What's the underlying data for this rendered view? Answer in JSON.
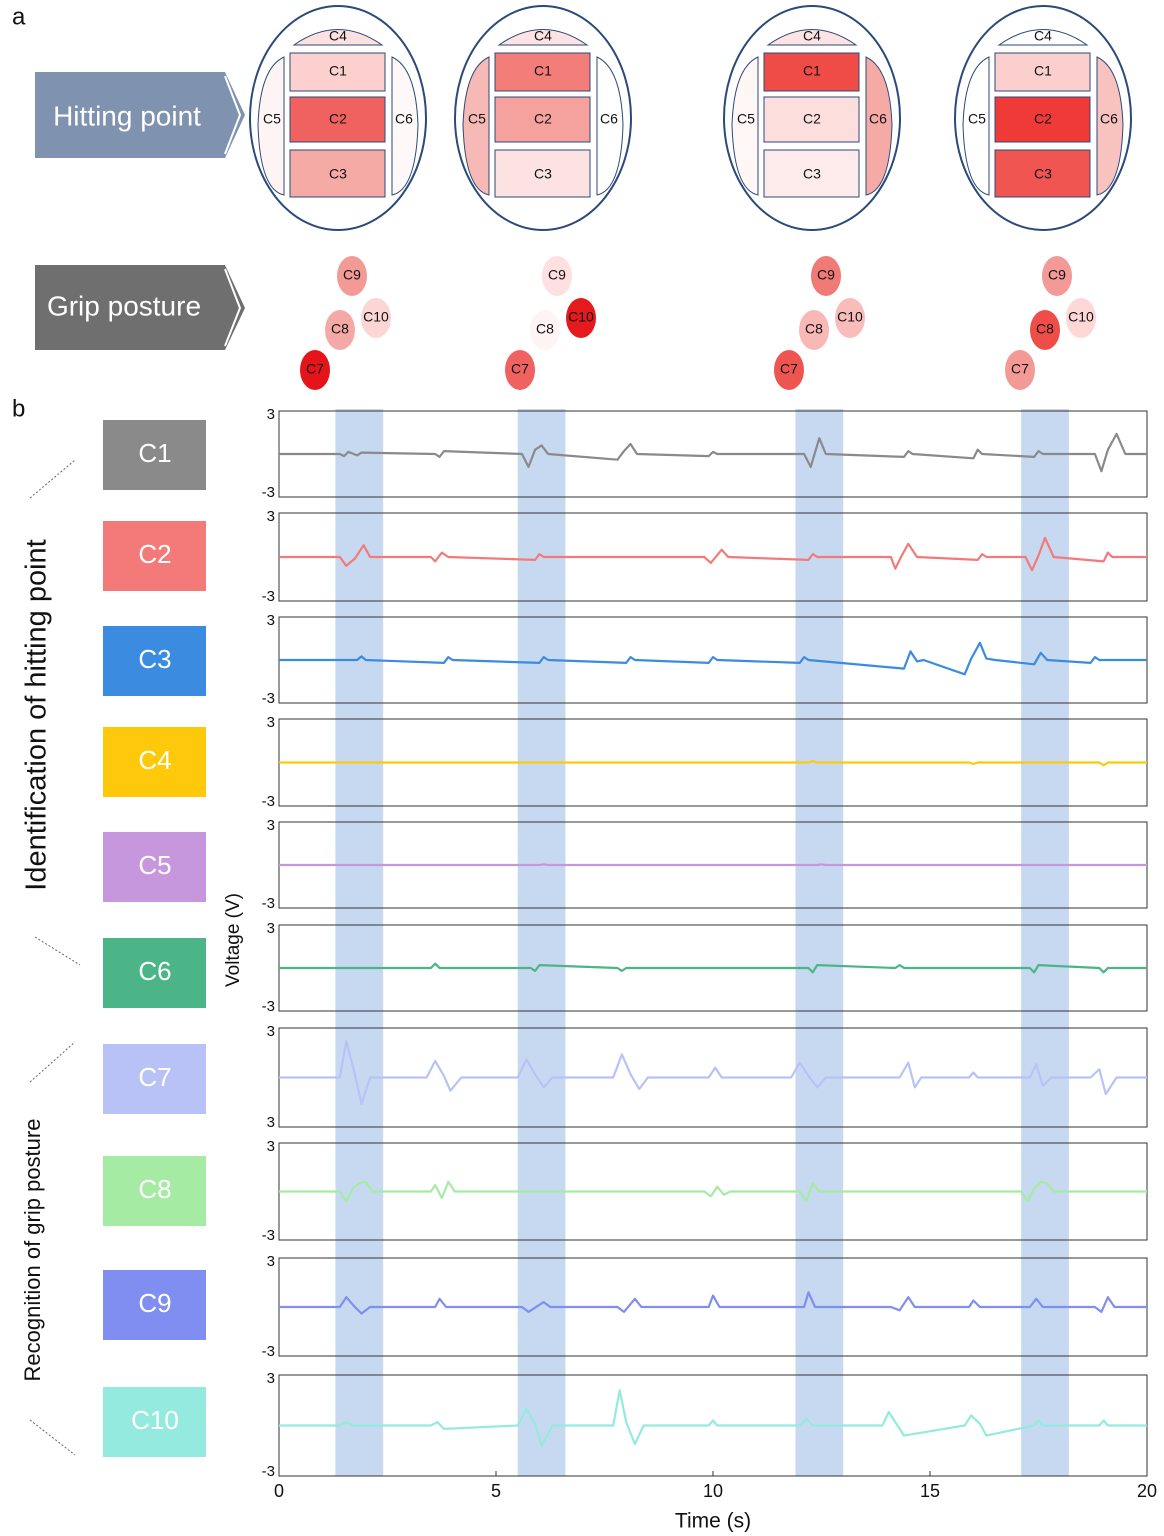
{
  "panel_a": {
    "label": "a",
    "hitting_label": "Hitting point",
    "grip_label": "Grip posture",
    "rackets": [
      {
        "cells": [
          {
            "label": "C4",
            "color": "#fde0e0"
          },
          {
            "label": "C1",
            "color": "#fbd0cf"
          },
          {
            "label": "C2",
            "color": "#f0625f"
          },
          {
            "label": "C3",
            "color": "#f6aaa6"
          },
          {
            "label": "C5",
            "color": "#fff4f4"
          },
          {
            "label": "C6",
            "color": "#fff8f8"
          }
        ]
      },
      {
        "cells": [
          {
            "label": "C4",
            "color": "#fde3e3"
          },
          {
            "label": "C1",
            "color": "#f27d79"
          },
          {
            "label": "C2",
            "color": "#f5a29e"
          },
          {
            "label": "C3",
            "color": "#fce3e2"
          },
          {
            "label": "C5",
            "color": "#f6b9b6"
          },
          {
            "label": "C6",
            "color": "#ffffff"
          }
        ]
      },
      {
        "cells": [
          {
            "label": "C4",
            "color": "#fde3e3"
          },
          {
            "label": "C1",
            "color": "#ef4c48"
          },
          {
            "label": "C2",
            "color": "#fcdedd"
          },
          {
            "label": "C3",
            "color": "#fdebec"
          },
          {
            "label": "C5",
            "color": "#fff6f6"
          },
          {
            "label": "C6",
            "color": "#f5aaa6"
          }
        ]
      },
      {
        "cells": [
          {
            "label": "C4",
            "color": "#ffffff"
          },
          {
            "label": "C1",
            "color": "#fbcfce"
          },
          {
            "label": "C2",
            "color": "#f03a37"
          },
          {
            "label": "C3",
            "color": "#f05552"
          },
          {
            "label": "C5",
            "color": "#ffffff"
          },
          {
            "label": "C6",
            "color": "#f8c2bf"
          }
        ]
      }
    ],
    "grips": [
      {
        "cells": [
          {
            "label": "C9",
            "color": "#f39a97"
          },
          {
            "label": "C10",
            "color": "#fcd6d5"
          },
          {
            "label": "C8",
            "color": "#f5a9a6"
          },
          {
            "label": "C7",
            "color": "#e4141a"
          }
        ]
      },
      {
        "cells": [
          {
            "label": "C9",
            "color": "#fde0df"
          },
          {
            "label": "C10",
            "color": "#e41a1c"
          },
          {
            "label": "C8",
            "color": "#fff4f4"
          },
          {
            "label": "C7",
            "color": "#f0625f"
          }
        ]
      },
      {
        "cells": [
          {
            "label": "C9",
            "color": "#f07a75"
          },
          {
            "label": "C10",
            "color": "#f8bdbb"
          },
          {
            "label": "C8",
            "color": "#f8b9b6"
          },
          {
            "label": "C7",
            "color": "#ef5550"
          }
        ]
      },
      {
        "cells": [
          {
            "label": "C9",
            "color": "#f39a97"
          },
          {
            "label": "C10",
            "color": "#fdd8d6"
          },
          {
            "label": "C8",
            "color": "#ee4d48"
          },
          {
            "label": "C7",
            "color": "#f49a96"
          }
        ]
      }
    ]
  },
  "panel_b": {
    "label": "b",
    "ylabel": "Voltage (V)",
    "group_hitting": "Identification of hitting point",
    "group_grip": "Recognition of grip posture",
    "highlight_spans": [
      [
        1.3,
        2.4
      ],
      [
        5.5,
        6.6
      ],
      [
        11.9,
        13.0
      ],
      [
        17.1,
        18.2
      ]
    ]
  },
  "chart_data": [
    {
      "type": "line",
      "xlim": [
        0,
        20
      ],
      "ylim": [
        -3,
        3
      ],
      "yticks": [
        -3,
        3
      ],
      "x": [
        0,
        1.4,
        1.5,
        1.6,
        1.8,
        1.9,
        3.6,
        3.7,
        3.8,
        5.6,
        5.75,
        5.9,
        6.05,
        6.2,
        7.8,
        7.95,
        8.1,
        8.25,
        9.9,
        10.0,
        10.1,
        12.1,
        12.25,
        12.45,
        12.6,
        14.4,
        14.5,
        14.6,
        16.0,
        16.1,
        16.2,
        17.4,
        17.5,
        17.6,
        18.8,
        18.95,
        19.1,
        19.3,
        19.5,
        20
      ],
      "series": [
        {
          "name": "C1",
          "color": "#8a8a8a",
          "values": [
            0,
            0,
            -0.15,
            0.15,
            -0.1,
            0.1,
            0,
            -0.2,
            0.2,
            0,
            -0.9,
            0.3,
            0.6,
            0,
            -0.4,
            0.2,
            0.7,
            0,
            -0.15,
            0.15,
            0,
            0,
            -0.9,
            1.1,
            0,
            -0.2,
            0.2,
            0,
            -0.3,
            0.3,
            0,
            -0.2,
            0.2,
            0,
            0,
            -1.2,
            0.3,
            1.4,
            0,
            0
          ]
        }
      ]
    },
    {
      "type": "line",
      "xlim": [
        0,
        20
      ],
      "ylim": [
        -3,
        3
      ],
      "yticks": [
        -3,
        3
      ],
      "x": [
        0,
        1.4,
        1.55,
        1.75,
        1.95,
        2.1,
        3.5,
        3.6,
        3.75,
        3.9,
        5.9,
        6.0,
        6.1,
        9.8,
        9.95,
        10.2,
        10.35,
        12.2,
        12.3,
        12.4,
        14.1,
        14.2,
        14.35,
        14.5,
        14.7,
        16.1,
        16.2,
        16.3,
        17.2,
        17.35,
        17.5,
        17.65,
        17.85,
        19.0,
        19.1,
        19.2,
        20
      ],
      "series": [
        {
          "name": "C2",
          "color": "#f47a7a",
          "values": [
            0,
            0,
            -0.6,
            -0.1,
            0.8,
            0,
            0,
            -0.3,
            0.3,
            0,
            -0.2,
            0.2,
            0,
            0,
            -0.4,
            0.5,
            0,
            -0.2,
            0.2,
            0,
            0,
            -0.8,
            0.1,
            0.9,
            0,
            -0.2,
            0.2,
            0,
            0,
            -0.9,
            0.1,
            1.3,
            0,
            -0.3,
            0.3,
            0,
            0
          ]
        }
      ]
    },
    {
      "type": "line",
      "xlim": [
        0,
        20
      ],
      "ylim": [
        -3,
        3
      ],
      "yticks": [
        -3,
        3
      ],
      "x": [
        0,
        1.8,
        1.9,
        2.0,
        3.8,
        3.9,
        4.0,
        6.0,
        6.1,
        6.2,
        8.0,
        8.1,
        8.2,
        9.9,
        10.0,
        10.1,
        12.0,
        12.1,
        12.2,
        14.4,
        14.55,
        14.7,
        14.85,
        15.8,
        15.95,
        16.15,
        16.3,
        16.5,
        17.4,
        17.55,
        17.7,
        18.7,
        18.8,
        18.9,
        20
      ],
      "series": [
        {
          "name": "C3",
          "color": "#3b8be0",
          "values": [
            0,
            0,
            0.25,
            0,
            -0.2,
            0.2,
            0,
            -0.2,
            0.2,
            0,
            -0.2,
            0.2,
            0,
            -0.2,
            0.2,
            0,
            -0.2,
            0.2,
            0,
            -0.6,
            0.6,
            -0.1,
            0,
            -1.0,
            0.1,
            1.2,
            0.1,
            0,
            -0.3,
            0.5,
            0,
            -0.2,
            0.2,
            0,
            0
          ]
        }
      ]
    },
    {
      "type": "line",
      "xlim": [
        0,
        20
      ],
      "ylim": [
        -3,
        3
      ],
      "yticks": [
        -3,
        3
      ],
      "x": [
        0,
        12.2,
        12.3,
        12.4,
        15.9,
        16.0,
        16.1,
        18.9,
        19.0,
        19.1,
        20
      ],
      "series": [
        {
          "name": "C4",
          "color": "#fdc90a",
          "values": [
            0,
            0,
            0.1,
            0,
            0,
            -0.1,
            0,
            0,
            -0.2,
            0,
            0
          ]
        }
      ]
    },
    {
      "type": "line",
      "xlim": [
        0,
        20
      ],
      "ylim": [
        -3,
        3
      ],
      "yticks": [
        -3,
        3
      ],
      "x": [
        0,
        6.0,
        6.1,
        6.2,
        12.4,
        12.5,
        12.6,
        20
      ],
      "series": [
        {
          "name": "C5",
          "color": "#c797de",
          "values": [
            0,
            0,
            0.05,
            0,
            0,
            0.05,
            0,
            0
          ]
        }
      ]
    },
    {
      "type": "line",
      "xlim": [
        0,
        20
      ],
      "ylim": [
        -3,
        3
      ],
      "yticks": [
        -3,
        3
      ],
      "x": [
        0,
        3.5,
        3.6,
        3.7,
        5.8,
        5.9,
        6.0,
        7.8,
        7.9,
        8.0,
        12.2,
        12.3,
        12.4,
        14.2,
        14.3,
        14.4,
        17.3,
        17.4,
        17.5,
        18.9,
        19.0,
        19.1,
        20
      ],
      "series": [
        {
          "name": "C6",
          "color": "#4cb587",
          "values": [
            0,
            0,
            0.3,
            0,
            0,
            -0.2,
            0.2,
            0,
            -0.2,
            0,
            0,
            -0.3,
            0.2,
            0,
            0.2,
            0,
            0,
            -0.3,
            0.2,
            0,
            -0.3,
            0,
            0
          ]
        }
      ]
    },
    {
      "type": "line",
      "xlim": [
        0,
        20
      ],
      "ylim": [
        -3,
        3
      ],
      "yticks": [
        {
          "value": -3,
          "label": "3"
        },
        3
      ],
      "x": [
        0,
        1.4,
        1.55,
        1.75,
        1.9,
        2.1,
        3.4,
        3.6,
        3.8,
        3.95,
        4.2,
        5.5,
        5.7,
        5.9,
        6.1,
        6.3,
        7.7,
        7.9,
        8.1,
        8.3,
        8.5,
        9.9,
        10.05,
        10.2,
        11.8,
        12.0,
        12.2,
        12.4,
        12.6,
        14.3,
        14.5,
        14.65,
        14.8,
        15.9,
        16.0,
        16.1,
        17.3,
        17.45,
        17.6,
        17.8,
        18.7,
        18.9,
        19.05,
        19.3,
        20
      ],
      "series": [
        {
          "name": "C7",
          "color": "#b9c2f7",
          "values": [
            0,
            0,
            2.2,
            0.2,
            -1.6,
            0,
            0,
            1.0,
            0.1,
            -0.8,
            0,
            0,
            1.1,
            0.2,
            -0.6,
            0,
            0,
            1.4,
            0.2,
            -0.7,
            0,
            0,
            0.6,
            0,
            0,
            0.9,
            0.1,
            -0.6,
            0,
            0,
            0.9,
            -0.6,
            0,
            0,
            0.3,
            0,
            0,
            0.8,
            -0.5,
            0,
            0,
            0.5,
            -1.0,
            0,
            0
          ]
        }
      ]
    },
    {
      "type": "line",
      "xlim": [
        0,
        20
      ],
      "ylim": [
        -3,
        3
      ],
      "yticks": [
        -3,
        3
      ],
      "x": [
        0,
        1.4,
        1.55,
        1.7,
        1.85,
        2.0,
        2.15,
        3.5,
        3.6,
        3.75,
        3.9,
        4.05,
        9.8,
        9.95,
        10.1,
        10.25,
        10.4,
        12.0,
        12.15,
        12.3,
        12.45,
        17.1,
        17.25,
        17.4,
        17.55,
        17.7,
        17.85,
        20
      ],
      "series": [
        {
          "name": "C8",
          "color": "#a6eba4",
          "values": [
            0,
            0,
            -0.6,
            0.2,
            0.5,
            0.6,
            0,
            0,
            0.4,
            -0.4,
            0.6,
            0,
            0,
            -0.3,
            0.3,
            -0.2,
            0,
            0,
            -0.6,
            0.5,
            0,
            0,
            -0.6,
            0.2,
            0.6,
            0.5,
            0,
            0
          ]
        }
      ]
    },
    {
      "type": "line",
      "xlim": [
        0,
        20
      ],
      "ylim": [
        -3,
        3
      ],
      "yticks": [
        -3,
        3
      ],
      "x": [
        0,
        1.4,
        1.55,
        1.75,
        1.9,
        2.1,
        3.6,
        3.7,
        3.85,
        5.6,
        5.75,
        6.1,
        6.25,
        7.8,
        7.95,
        8.2,
        8.35,
        9.9,
        10.0,
        10.15,
        12.1,
        12.2,
        12.35,
        14.1,
        14.3,
        14.5,
        14.65,
        15.9,
        16.0,
        16.15,
        17.3,
        17.45,
        17.6,
        18.8,
        18.95,
        19.1,
        19.25,
        20
      ],
      "series": [
        {
          "name": "C9",
          "color": "#7f8ef0",
          "values": [
            0,
            0,
            0.6,
            0,
            -0.4,
            0,
            0,
            0.5,
            0,
            0,
            -0.3,
            0.3,
            0,
            0,
            -0.3,
            0.5,
            0,
            0,
            0.7,
            0,
            0,
            0.9,
            0,
            0,
            -0.2,
            0.6,
            0,
            0,
            0.4,
            0,
            0,
            0.5,
            0,
            0,
            -0.3,
            0.6,
            0,
            0
          ]
        }
      ]
    },
    {
      "type": "line",
      "xlim": [
        0,
        20
      ],
      "ylim": [
        -3,
        3
      ],
      "yticks": [
        -3,
        3
      ],
      "xticks": [
        0,
        5,
        10,
        15,
        20
      ],
      "xlabel": "Time (s)",
      "x": [
        0,
        1.4,
        1.55,
        1.7,
        3.5,
        3.65,
        3.8,
        5.5,
        5.7,
        5.9,
        6.05,
        6.3,
        7.7,
        7.85,
        8.0,
        8.2,
        8.4,
        9.9,
        10.0,
        10.1,
        12.0,
        12.15,
        12.3,
        13.9,
        14.05,
        14.25,
        14.4,
        15.8,
        15.95,
        16.15,
        16.3,
        17.4,
        17.5,
        17.6,
        18.9,
        19.0,
        19.1,
        20
      ],
      "series": [
        {
          "name": "C10",
          "color": "#95eadf",
          "values": [
            0,
            0,
            0.2,
            0,
            0,
            0.2,
            -0.2,
            0,
            1.0,
            0.1,
            -1.2,
            0,
            0,
            2.1,
            0.2,
            -1.1,
            0,
            0,
            0.3,
            0,
            0,
            0.4,
            0,
            0,
            0.8,
            0,
            -0.6,
            0,
            0.6,
            0.1,
            -0.6,
            0,
            0.3,
            0,
            0,
            0.3,
            0,
            0
          ]
        }
      ]
    }
  ]
}
